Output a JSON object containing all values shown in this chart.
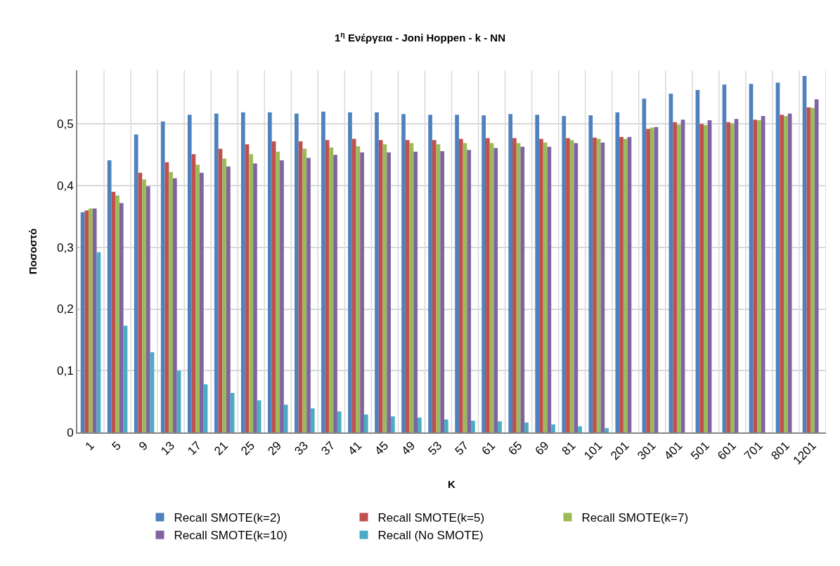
{
  "chart_data": {
    "type": "bar",
    "title": "1$^{η}$ Ενέργεια - Joni Hoppen - k - NN",
    "xlabel": "K",
    "ylabel": "Ποσοστό",
    "categories": [
      "1",
      "5",
      "9",
      "13",
      "17",
      "21",
      "25",
      "29",
      "33",
      "37",
      "41",
      "45",
      "49",
      "53",
      "57",
      "61",
      "65",
      "69",
      "81",
      "101",
      "201",
      "301",
      "401",
      "501",
      "601",
      "701",
      "801",
      "1201"
    ],
    "series": [
      {
        "name": "Recall SMOTE(k=2)",
        "color": "#4f81bd",
        "values": [
          0.357,
          0.441,
          0.483,
          0.504,
          0.515,
          0.517,
          0.519,
          0.519,
          0.517,
          0.52,
          0.519,
          0.519,
          0.516,
          0.515,
          0.515,
          0.514,
          0.516,
          0.515,
          0.513,
          0.514,
          0.519,
          0.541,
          0.549,
          0.555,
          0.564,
          0.565,
          0.567,
          0.578
        ]
      },
      {
        "name": "Recall SMOTE(k=5)",
        "color": "#c0504d",
        "values": [
          0.36,
          0.39,
          0.421,
          0.438,
          0.451,
          0.46,
          0.467,
          0.472,
          0.472,
          0.474,
          0.476,
          0.474,
          0.474,
          0.474,
          0.476,
          0.477,
          0.477,
          0.476,
          0.477,
          0.478,
          0.479,
          0.492,
          0.503,
          0.5,
          0.503,
          0.507,
          0.515,
          0.527
        ]
      },
      {
        "name": "Recall SMOTE(k=7)",
        "color": "#9bbb59",
        "values": [
          0.363,
          0.384,
          0.41,
          0.422,
          0.434,
          0.444,
          0.451,
          0.455,
          0.46,
          0.462,
          0.464,
          0.467,
          0.469,
          0.467,
          0.469,
          0.469,
          0.469,
          0.47,
          0.474,
          0.476,
          0.476,
          0.494,
          0.499,
          0.498,
          0.501,
          0.506,
          0.513,
          0.526
        ]
      },
      {
        "name": "Recall SMOTE(k=10)",
        "color": "#8064a2",
        "values": [
          0.363,
          0.372,
          0.399,
          0.412,
          0.421,
          0.431,
          0.436,
          0.441,
          0.445,
          0.45,
          0.454,
          0.454,
          0.455,
          0.456,
          0.458,
          0.461,
          0.463,
          0.463,
          0.469,
          0.47,
          0.479,
          0.495,
          0.507,
          0.506,
          0.508,
          0.513,
          0.517,
          0.54
        ]
      },
      {
        "name": "Recall (No SMOTE)",
        "color": "#4bacc6",
        "values": [
          0.292,
          0.173,
          0.13,
          0.1,
          0.078,
          0.064,
          0.052,
          0.045,
          0.039,
          0.034,
          0.029,
          0.026,
          0.024,
          0.021,
          0.019,
          0.018,
          0.016,
          0.013,
          0.01,
          0.007,
          null,
          null,
          null,
          null,
          null,
          null,
          null,
          null
        ]
      }
    ],
    "ylim": [
      0,
      0.587
    ],
    "yticks": [
      0,
      {
        "value": 0.1,
        "label": "0,1"
      },
      {
        "value": 0.2,
        "label": "0,2"
      },
      {
        "value": 0.3,
        "label": "0,3"
      },
      {
        "value": 0.4,
        "label": "0,4"
      },
      {
        "value": 0.5,
        "label": "0,5"
      }
    ],
    "grid": true,
    "legend": "bottom"
  }
}
